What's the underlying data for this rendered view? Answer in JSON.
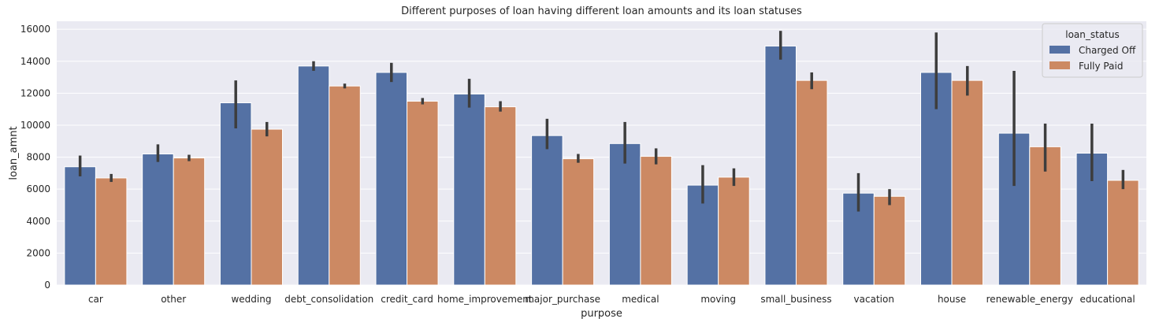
{
  "chart_data": {
    "type": "bar",
    "title": "Different purposes of loan having different loan amounts and its loan statuses",
    "xlabel": "purpose",
    "ylabel": "loan_amnt",
    "ylim": [
      0,
      16500
    ],
    "yticks": [
      0,
      2000,
      4000,
      6000,
      8000,
      10000,
      12000,
      14000,
      16000
    ],
    "grid": true,
    "legend": {
      "title": "loan_status",
      "placement": "top-right"
    },
    "categories": [
      "car",
      "other",
      "wedding",
      "debt_consolidation",
      "credit_card",
      "home_improvement",
      "major_purchase",
      "medical",
      "moving",
      "small_business",
      "vacation",
      "house",
      "renewable_energy",
      "educational"
    ],
    "series": [
      {
        "name": "Charged Off",
        "color": "#5471a4",
        "values": [
          7400,
          8200,
          11400,
          13700,
          13300,
          11950,
          9350,
          8850,
          6250,
          14950,
          5750,
          13300,
          9500,
          8250
        ],
        "ci": [
          [
            6800,
            8100
          ],
          [
            7700,
            8800
          ],
          [
            9800,
            12800
          ],
          [
            13400,
            14000
          ],
          [
            12700,
            13900
          ],
          [
            11100,
            12900
          ],
          [
            8500,
            10400
          ],
          [
            7600,
            10200
          ],
          [
            5100,
            7500
          ],
          [
            14100,
            15900
          ],
          [
            4600,
            7000
          ],
          [
            11000,
            15800
          ],
          [
            6200,
            13400
          ],
          [
            6500,
            10100
          ]
        ]
      },
      {
        "name": "Fully Paid",
        "color": "#cc8963",
        "values": [
          6700,
          7950,
          9750,
          12450,
          11500,
          11150,
          7900,
          8050,
          6750,
          12800,
          5550,
          12800,
          8650,
          6550
        ],
        "ci": [
          [
            6450,
            6950
          ],
          [
            7750,
            8150
          ],
          [
            9300,
            10200
          ],
          [
            12300,
            12600
          ],
          [
            11300,
            11700
          ],
          [
            10850,
            11500
          ],
          [
            7650,
            8200
          ],
          [
            7550,
            8550
          ],
          [
            6200,
            7300
          ],
          [
            12250,
            13300
          ],
          [
            5000,
            6000
          ],
          [
            11850,
            13700
          ],
          [
            7100,
            10100
          ],
          [
            6000,
            7200
          ]
        ]
      }
    ]
  }
}
